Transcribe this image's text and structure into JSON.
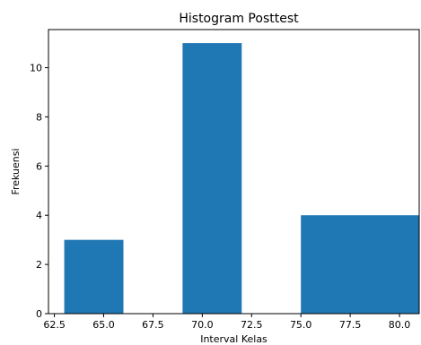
{
  "chart_data": {
    "type": "bar",
    "title": "Histogram Posttest",
    "xlabel": "Interval Kelas",
    "ylabel": "Frekuensi",
    "xlim": [
      62.2,
      81.0
    ],
    "ylim": [
      0,
      11.55
    ],
    "bars": [
      {
        "x_start": 63.0,
        "x_end": 66.0,
        "value": 3
      },
      {
        "x_start": 69.0,
        "x_end": 72.0,
        "value": 11
      },
      {
        "x_start": 75.0,
        "x_end": 81.0,
        "value": 4
      }
    ],
    "xticks": [
      62.5,
      65.0,
      67.5,
      70.0,
      72.5,
      75.0,
      77.5,
      80.0
    ],
    "xtick_labels": [
      "62.5",
      "65.0",
      "67.5",
      "70.0",
      "72.5",
      "75.0",
      "77.5",
      "80.0"
    ],
    "yticks": [
      0,
      2,
      4,
      6,
      8,
      10
    ],
    "ytick_labels": [
      "0",
      "2",
      "4",
      "6",
      "8",
      "10"
    ],
    "bar_color": "#1f77b4",
    "grid": false,
    "legend": "none"
  }
}
